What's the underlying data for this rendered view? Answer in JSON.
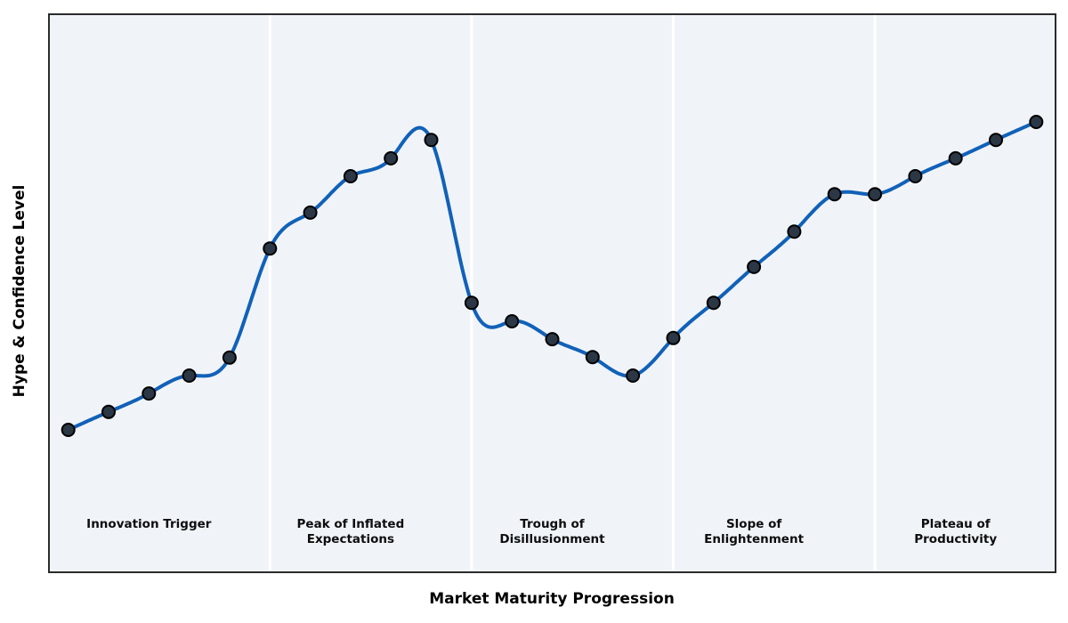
{
  "axes": {
    "x_label": "Market Maturity Progression",
    "y_label": "Hype & Confidence Level"
  },
  "phases": [
    {
      "name": "Innovation Trigger",
      "lines": [
        "Innovation Trigger"
      ]
    },
    {
      "name": "Peak of Inflated Expectations",
      "lines": [
        "Peak of Inflated",
        "Expectations"
      ]
    },
    {
      "name": "Trough of Disillusionment",
      "lines": [
        "Trough of",
        "Disillusionment"
      ]
    },
    {
      "name": "Slope of Enlightenment",
      "lines": [
        "Slope of",
        "Enlightenment"
      ]
    },
    {
      "name": "Plateau of Productivity",
      "lines": [
        "Plateau of",
        "Productivity"
      ]
    }
  ],
  "chart_data": {
    "type": "line",
    "title": "",
    "xlabel": "Market Maturity Progression",
    "ylabel": "Hype & Confidence Level",
    "x": [
      0,
      1,
      2,
      3,
      4,
      5,
      6,
      7,
      8,
      9,
      10,
      11,
      12,
      13,
      14,
      15,
      16,
      17,
      18,
      19,
      20,
      21,
      22,
      23,
      24
    ],
    "values": [
      25.6,
      28.8,
      32.1,
      35.3,
      38.5,
      58.0,
      64.4,
      70.9,
      74.1,
      77.4,
      48.3,
      45.0,
      41.8,
      38.6,
      35.3,
      42.0,
      48.3,
      54.7,
      61.0,
      67.7,
      67.7,
      70.9,
      74.1,
      77.4,
      80.6
    ],
    "xlim": [
      -0.5,
      24.5
    ],
    "ylim": [
      0,
      100
    ],
    "grid": false,
    "legend": "none",
    "ticks": "none",
    "smoothing": "cubic-spline",
    "phase_boundaries_x": [
      5,
      10,
      15,
      20
    ],
    "phase_label_x": [
      2,
      7,
      12,
      17,
      22
    ]
  },
  "colors": {
    "line": "#1161b8",
    "marker_fill": "#2b3745",
    "marker_edge": "#000000",
    "plot_bg": "#f0f4f8",
    "divider": "#ffffff",
    "spine": "#2b2b2b",
    "figure_bg": "#ffffff",
    "label_text": "#0d0d0d"
  }
}
